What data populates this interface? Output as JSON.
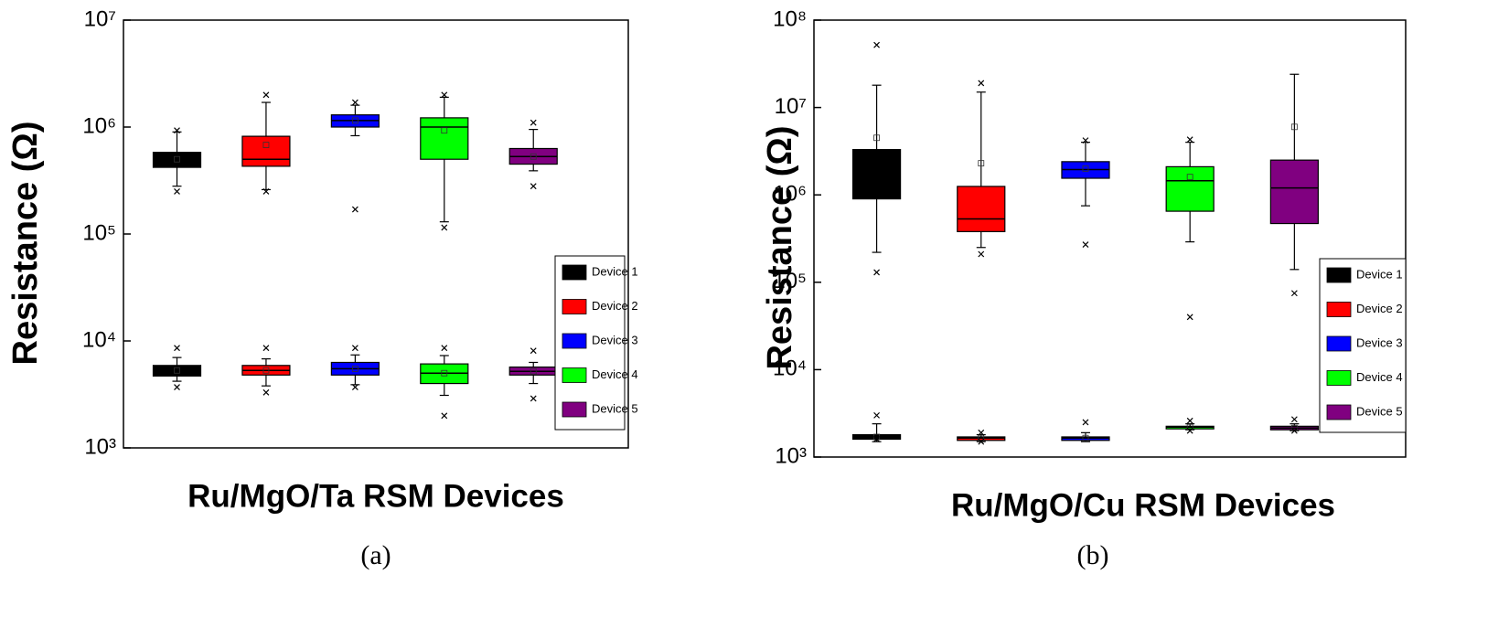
{
  "chart_data": [
    {
      "type": "box",
      "caption": "(a)",
      "x_label": "Ru/MgO/Ta RSM Devices",
      "y_label": "Resistance (Ω)",
      "log_y": true,
      "ylim": [
        1000,
        10000000
      ],
      "yticks": [
        {
          "value": 1000,
          "label": "10³"
        },
        {
          "value": 10000,
          "label": "10⁴"
        },
        {
          "value": 100000,
          "label": "10⁵"
        },
        {
          "value": 1000000,
          "label": "10⁶"
        },
        {
          "value": 10000000,
          "label": "10⁷"
        }
      ],
      "legend": "lower right",
      "series": [
        {
          "name": "Device 1",
          "color": "#000000",
          "boxes": [
            {
              "min": 280000,
              "q1": 420000,
              "median": 500000,
              "q3": 580000,
              "max": 900000,
              "mean": 500000,
              "outliers": [
                930000,
                250000
              ]
            },
            {
              "min": 4200,
              "q1": 4700,
              "median": 5300,
              "q3": 5900,
              "max": 7000,
              "mean": 5300,
              "outliers": [
                8600,
                3700
              ]
            }
          ]
        },
        {
          "name": "Device 2",
          "color": "#ff0000",
          "boxes": [
            {
              "min": 260000,
              "q1": 430000,
              "median": 500000,
              "q3": 820000,
              "max": 1700000,
              "mean": 680000,
              "outliers": [
                2000000,
                250000
              ]
            },
            {
              "min": 3800,
              "q1": 4800,
              "median": 5300,
              "q3": 5900,
              "max": 6800,
              "mean": 5300,
              "outliers": [
                8600,
                3300
              ]
            }
          ]
        },
        {
          "name": "Device 3",
          "color": "#0000ff",
          "boxes": [
            {
              "min": 830000,
              "q1": 1000000,
              "median": 1150000,
              "q3": 1300000,
              "max": 1600000,
              "mean": 1150000,
              "outliers": [
                1700000,
                170000
              ]
            },
            {
              "min": 3900,
              "q1": 4800,
              "median": 5500,
              "q3": 6300,
              "max": 7400,
              "mean": 5500,
              "outliers": [
                8600,
                3700
              ]
            }
          ]
        },
        {
          "name": "Device 4",
          "color": "#00ff00",
          "boxes": [
            {
              "min": 130000,
              "q1": 500000,
              "median": 1000000,
              "q3": 1220000,
              "max": 1900000,
              "mean": 930000,
              "outliers": [
                2000000,
                115000
              ]
            },
            {
              "min": 3100,
              "q1": 4000,
              "median": 5000,
              "q3": 6100,
              "max": 7300,
              "mean": 5000,
              "outliers": [
                8600,
                2000
              ]
            }
          ]
        },
        {
          "name": "Device 5",
          "color": "#800080",
          "boxes": [
            {
              "min": 390000,
              "q1": 450000,
              "median": 530000,
              "q3": 630000,
              "max": 950000,
              "mean": 530000,
              "outliers": [
                1100000,
                280000
              ]
            },
            {
              "min": 4000,
              "q1": 4800,
              "median": 5200,
              "q3": 5700,
              "max": 6300,
              "mean": 5200,
              "outliers": [
                8100,
                2900
              ]
            }
          ]
        }
      ]
    },
    {
      "type": "box",
      "caption": "(b)",
      "x_label": "Ru/MgO/Cu RSM Devices",
      "y_label": "Resistance (Ω)",
      "log_y": true,
      "ylim": [
        1000,
        100000000
      ],
      "yticks": [
        {
          "value": 1000,
          "label": "10³"
        },
        {
          "value": 10000,
          "label": "10⁴"
        },
        {
          "value": 100000,
          "label": "10⁵"
        },
        {
          "value": 1000000,
          "label": "10⁶"
        },
        {
          "value": 10000000,
          "label": "10⁷"
        },
        {
          "value": 100000000,
          "label": "10⁸"
        }
      ],
      "legend": "lower right",
      "series": [
        {
          "name": "Device 1",
          "color": "#000000",
          "boxes": [
            {
              "min": 220000,
              "q1": 900000,
              "median": 1800000,
              "q3": 3300000,
              "max": 18000000,
              "mean": 4500000,
              "outliers": [
                52000000,
                130000
              ]
            },
            {
              "min": 1500,
              "q1": 1600,
              "median": 1700,
              "q3": 1800,
              "max": 2400,
              "mean": 1700,
              "outliers": [
                3000,
                1600
              ]
            }
          ]
        },
        {
          "name": "Device 2",
          "color": "#ff0000",
          "boxes": [
            {
              "min": 250000,
              "q1": 380000,
              "median": 530000,
              "q3": 1250000,
              "max": 15000000,
              "mean": 2300000,
              "outliers": [
                19000000,
                210000
              ]
            },
            {
              "min": 1500,
              "q1": 1550,
              "median": 1650,
              "q3": 1700,
              "max": 1800,
              "mean": 1650,
              "outliers": [
                1900,
                1500
              ]
            }
          ]
        },
        {
          "name": "Device 3",
          "color": "#0000ff",
          "boxes": [
            {
              "min": 750000,
              "q1": 1550000,
              "median": 1950000,
              "q3": 2400000,
              "max": 4000000,
              "mean": 2000000,
              "outliers": [
                4200000,
                270000
              ]
            },
            {
              "min": 1500,
              "q1": 1550,
              "median": 1650,
              "q3": 1700,
              "max": 1900,
              "mean": 1650,
              "outliers": [
                2500
              ]
            }
          ]
        },
        {
          "name": "Device 4",
          "color": "#00ff00",
          "boxes": [
            {
              "min": 290000,
              "q1": 650000,
              "median": 1450000,
              "q3": 2100000,
              "max": 4000000,
              "mean": 1600000,
              "outliers": [
                4300000,
                40000
              ]
            },
            {
              "min": 2050,
              "q1": 2100,
              "median": 2200,
              "q3": 2250,
              "max": 2400,
              "mean": 2200,
              "outliers": [
                2600,
                2000
              ]
            }
          ]
        },
        {
          "name": "Device 5",
          "color": "#800080",
          "boxes": [
            {
              "min": 140000,
              "q1": 470000,
              "median": 1200000,
              "q3": 2500000,
              "max": 24000000,
              "mean": 6000000,
              "outliers": [
                75000
              ]
            },
            {
              "min": 2000,
              "q1": 2050,
              "median": 2150,
              "q3": 2250,
              "max": 2400,
              "mean": 2150,
              "outliers": [
                2700,
                2000
              ]
            }
          ]
        }
      ]
    }
  ]
}
